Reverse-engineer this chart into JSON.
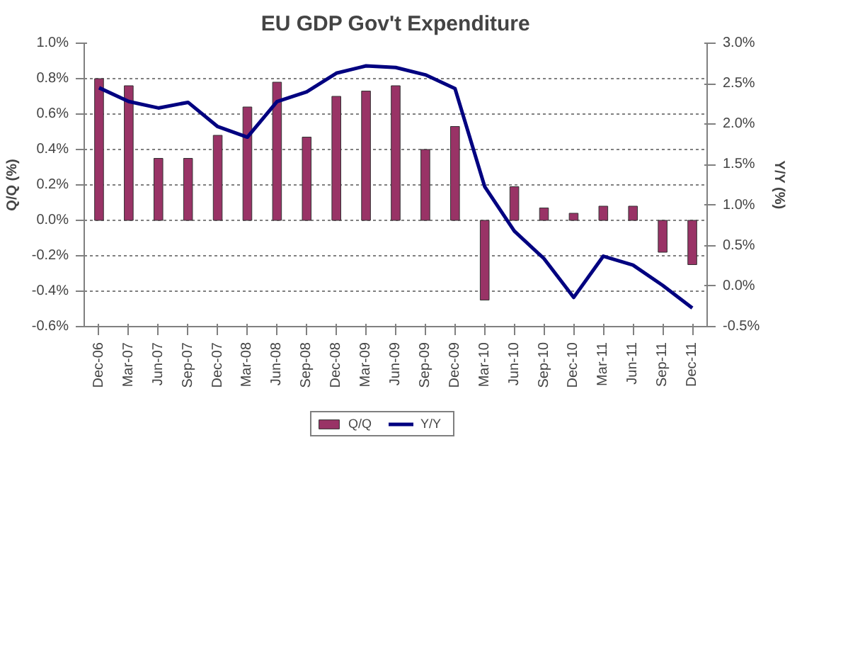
{
  "chart_data": {
    "type": "bar",
    "title": "EU GDP Gov't Expenditure",
    "ylabel": "Q/Q (%)",
    "y2label": "Y/Y (%)",
    "categories": [
      "Dec-06",
      "Mar-07",
      "Jun-07",
      "Sep-07",
      "Dec-07",
      "Mar-08",
      "Jun-08",
      "Sep-08",
      "Dec-08",
      "Mar-09",
      "Jun-09",
      "Sep-09",
      "Dec-09",
      "Mar-10",
      "Jun-10",
      "Sep-10",
      "Dec-10",
      "Mar-11",
      "Jun-11",
      "Sep-11",
      "Dec-11"
    ],
    "series": [
      {
        "name": "Q/Q",
        "color": "#993366",
        "values": [
          0.8,
          0.76,
          0.35,
          0.35,
          0.48,
          0.64,
          0.78,
          0.47,
          0.7,
          0.73,
          0.76,
          0.4,
          0.53,
          -0.45,
          0.19,
          0.07,
          0.04,
          0.08,
          0.08,
          -0.18,
          -0.25
        ]
      },
      {
        "name": "Y/Y",
        "type": "line",
        "axis": "y2",
        "color": "#000080",
        "values": [
          2.45,
          2.28,
          2.2,
          2.27,
          1.97,
          1.84,
          2.28,
          2.4,
          2.63,
          2.72,
          2.7,
          2.61,
          2.44,
          1.23,
          0.68,
          0.34,
          -0.14,
          0.37,
          0.26,
          0.01,
          -0.27
        ]
      }
    ],
    "ylim": [
      -0.6,
      1.0
    ],
    "yticks": [
      {
        "value": -0.6,
        "label": "-0.6%"
      },
      {
        "value": -0.4,
        "label": "-0.4%"
      },
      {
        "value": -0.2,
        "label": "-0.2%"
      },
      {
        "value": 0.0,
        "label": "0.0%"
      },
      {
        "value": 0.2,
        "label": "0.2%"
      },
      {
        "value": 0.4,
        "label": "0.4%"
      },
      {
        "value": 0.6,
        "label": "0.6%"
      },
      {
        "value": 0.8,
        "label": "0.8%"
      },
      {
        "value": 1.0,
        "label": "1.0%"
      }
    ],
    "y2lim": [
      -0.5,
      3.0
    ],
    "y2ticks": [
      {
        "value": -0.5,
        "label": "-0.5%"
      },
      {
        "value": 0.0,
        "label": "0.0%"
      },
      {
        "value": 0.5,
        "label": "0.5%"
      },
      {
        "value": 1.0,
        "label": "1.0%"
      },
      {
        "value": 1.5,
        "label": "1.5%"
      },
      {
        "value": 2.0,
        "label": "2.0%"
      },
      {
        "value": 2.5,
        "label": "2.5%"
      },
      {
        "value": 3.0,
        "label": "3.0%"
      }
    ],
    "grid": "y",
    "legend": "bottom"
  }
}
